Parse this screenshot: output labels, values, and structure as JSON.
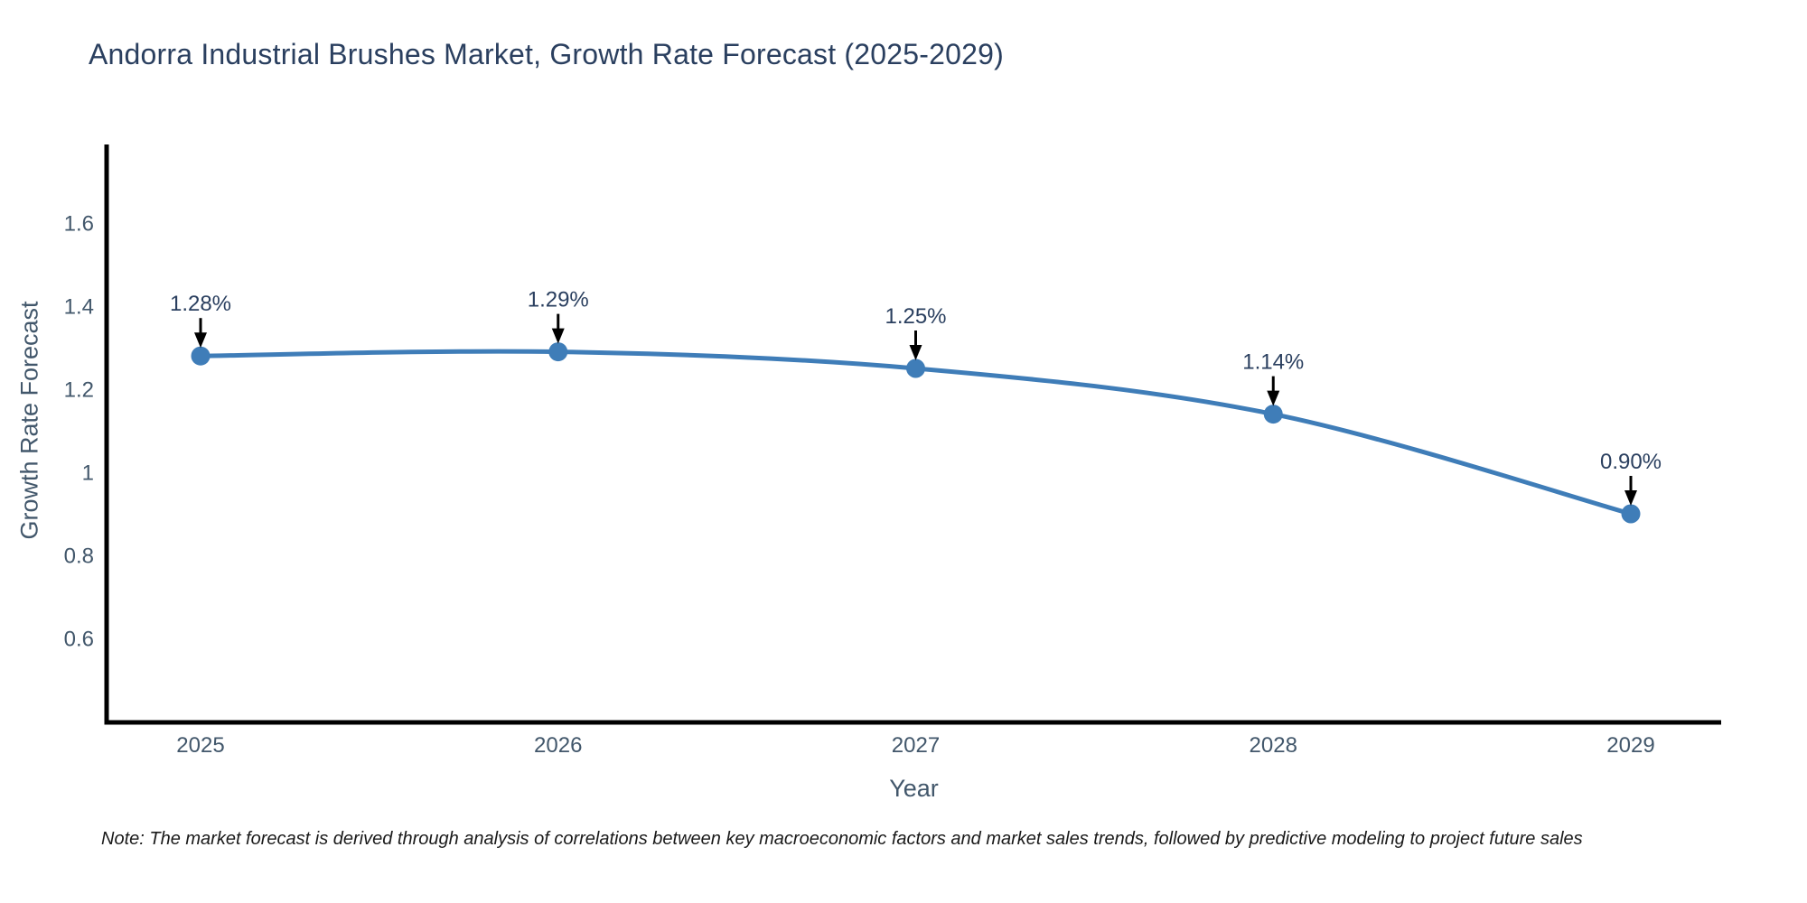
{
  "note": "Note: The market forecast is derived through analysis of correlations between key macroeconomic factors and market sales trends, followed by predictive modeling to project future sales",
  "chart_data": {
    "type": "line",
    "title": "Andorra Industrial Brushes Market, Growth Rate Forecast (2025-2029)",
    "xlabel": "Year",
    "ylabel": "Growth Rate Forecast",
    "x": [
      "2025",
      "2026",
      "2027",
      "2028",
      "2029"
    ],
    "y": [
      1.28,
      1.29,
      1.25,
      1.14,
      0.9
    ],
    "point_labels": [
      "1.28%",
      "1.29%",
      "1.25%",
      "1.14%",
      "0.90%"
    ],
    "ytick_values": [
      1.6,
      1.4,
      1.2,
      1.0,
      0.8,
      0.6
    ],
    "ytick_labels": [
      "1.6",
      "1.4",
      "1.2",
      "1",
      "0.8",
      "0.6"
    ],
    "ylim": [
      0.4,
      1.79
    ],
    "xlim_categories_padding": 0.26,
    "grid": false,
    "legend": false,
    "line_shape": "spline",
    "annotations_have_arrows": true,
    "colors": {
      "line": "#3f7db8",
      "marker": "#3f7db8",
      "axis": "#000000",
      "tick_label": "#42576b",
      "title": "#2a3f5f",
      "annotation_text": "#2a3f5f",
      "annotation_arrow": "#000000",
      "note_text": "#1a1a1a",
      "background": "#ffffff"
    }
  }
}
